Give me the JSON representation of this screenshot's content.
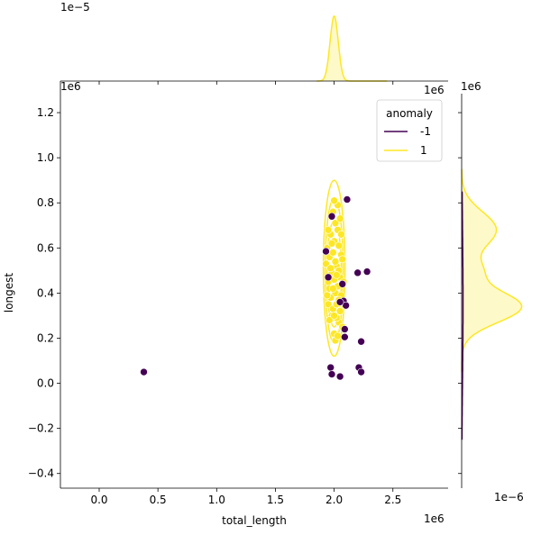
{
  "chart_data": {
    "type": "scatter",
    "x_axis": {
      "label": "total_length",
      "offset_text": "1e6",
      "range": [
        -0.33,
        2.97
      ],
      "ticks": [
        0.0,
        0.5,
        1.0,
        1.5,
        2.0,
        2.5
      ],
      "tick_labels": [
        "0.0",
        "0.5",
        "1.0",
        "1.5",
        "2.0",
        "2.5"
      ]
    },
    "y_axis": {
      "label": "longest",
      "offset_text": "1e6",
      "range": [
        -0.465,
        1.34
      ],
      "ticks": [
        -0.4,
        -0.2,
        0.0,
        0.2,
        0.4,
        0.6,
        0.8,
        1.0,
        1.2
      ],
      "tick_labels": [
        "−0.4",
        "−0.2",
        "0.0",
        "0.2",
        "0.4",
        "0.6",
        "0.8",
        "1.0",
        "1.2"
      ]
    },
    "top_marginal_offset_text": "1e−5",
    "right_marginal_top_offset_text": "1e6",
    "right_marginal_bottom_offset_text": "1e−6",
    "legend": {
      "title": "anomaly",
      "placement": "top-right",
      "entries": [
        {
          "label": "-1",
          "color": "#440154"
        },
        {
          "label": "1",
          "color": "#fde725"
        }
      ]
    },
    "series": [
      {
        "name": "-1",
        "color": "#440154",
        "points": [
          [
            0.38,
            0.05
          ],
          [
            1.97,
            0.07
          ],
          [
            1.98,
            0.04
          ],
          [
            2.05,
            0.03
          ],
          [
            2.21,
            0.07
          ],
          [
            2.23,
            0.05
          ],
          [
            2.23,
            0.185
          ],
          [
            2.09,
            0.205
          ],
          [
            2.09,
            0.24
          ],
          [
            2.2,
            0.49
          ],
          [
            2.28,
            0.495
          ],
          [
            2.11,
            0.815
          ],
          [
            2.08,
            0.365
          ],
          [
            2.1,
            0.345
          ],
          [
            1.95,
            0.47
          ],
          [
            1.93,
            0.585
          ],
          [
            1.98,
            0.74
          ],
          [
            2.05,
            0.36
          ],
          [
            2.07,
            0.44
          ]
        ]
      },
      {
        "name": "1",
        "color": "#fde725",
        "points": [
          [
            1.94,
            0.6
          ],
          [
            1.93,
            0.53
          ],
          [
            1.95,
            0.35
          ],
          [
            1.96,
            0.42
          ],
          [
            1.97,
            0.66
          ],
          [
            1.98,
            0.3
          ],
          [
            1.99,
            0.76
          ],
          [
            2.0,
            0.22
          ],
          [
            2.01,
            0.4
          ],
          [
            2.02,
            0.52
          ],
          [
            2.03,
            0.68
          ],
          [
            2.04,
            0.27
          ],
          [
            2.05,
            0.47
          ],
          [
            2.06,
            0.57
          ],
          [
            2.07,
            0.36
          ],
          [
            1.95,
            0.45
          ],
          [
            1.96,
            0.56
          ],
          [
            1.98,
            0.49
          ],
          [
            1.99,
            0.33
          ],
          [
            2.0,
            0.63
          ],
          [
            2.01,
            0.71
          ],
          [
            2.02,
            0.29
          ],
          [
            2.03,
            0.43
          ],
          [
            2.04,
            0.61
          ],
          [
            2.05,
            0.73
          ],
          [
            2.06,
            0.39
          ],
          [
            2.07,
            0.25
          ],
          [
            1.97,
            0.38
          ],
          [
            1.99,
            0.58
          ],
          [
            2.0,
            0.46
          ],
          [
            2.01,
            0.54
          ],
          [
            2.02,
            0.35
          ],
          [
            2.03,
            0.79
          ],
          [
            2.04,
            0.5
          ],
          [
            2.05,
            0.32
          ],
          [
            2.06,
            0.66
          ],
          [
            1.98,
            0.62
          ],
          [
            1.96,
            0.28
          ],
          [
            2.0,
            0.81
          ],
          [
            2.01,
            0.19
          ],
          [
            2.03,
            0.21
          ],
          [
            1.95,
            0.68
          ],
          [
            2.07,
            0.55
          ],
          [
            2.08,
            0.45
          ],
          [
            1.94,
            0.39
          ],
          [
            2.02,
            0.48
          ],
          [
            1.99,
            0.42
          ],
          [
            2.04,
            0.37
          ],
          [
            2.0,
            0.3
          ],
          [
            1.97,
            0.51
          ]
        ]
      }
    ],
    "grid": false
  }
}
